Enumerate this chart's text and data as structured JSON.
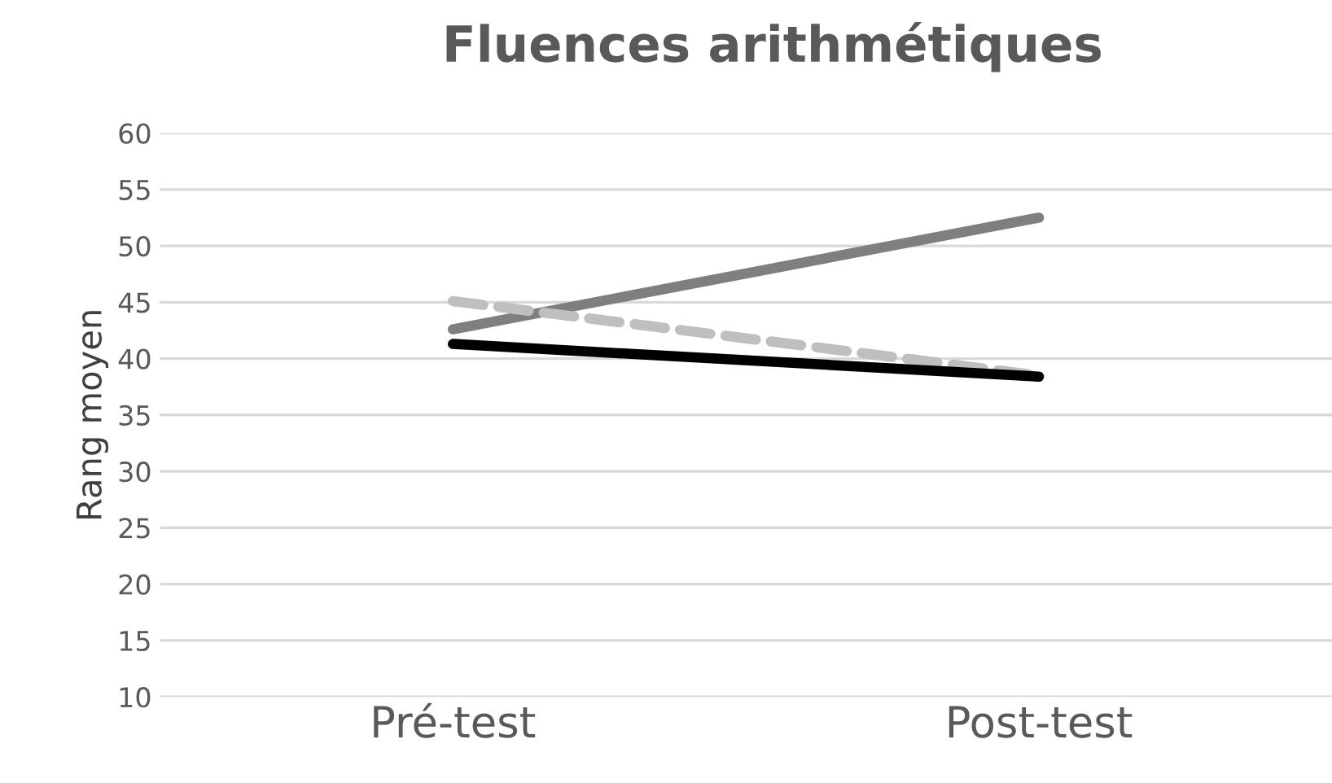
{
  "chart_data": {
    "type": "line",
    "title": "Fluences arithmétiques",
    "ylabel": "Rang moyen",
    "categories": [
      "Pré-test",
      "Post-test"
    ],
    "series": [
      {
        "color": "#7f7f7f",
        "values": [
          42.6,
          52.5
        ],
        "line_style": "solid"
      },
      {
        "color": "#bfbfbf",
        "values": [
          45.1,
          38.5
        ],
        "line_style": "dashed"
      },
      {
        "color": "#000000",
        "values": [
          41.3,
          38.4
        ],
        "line_style": "solid"
      }
    ],
    "ylim": [
      10,
      60
    ],
    "yticks": [
      10,
      15,
      20,
      25,
      30,
      35,
      40,
      45,
      50,
      55,
      60
    ],
    "grid": "y",
    "legend": false,
    "marker": "none"
  }
}
